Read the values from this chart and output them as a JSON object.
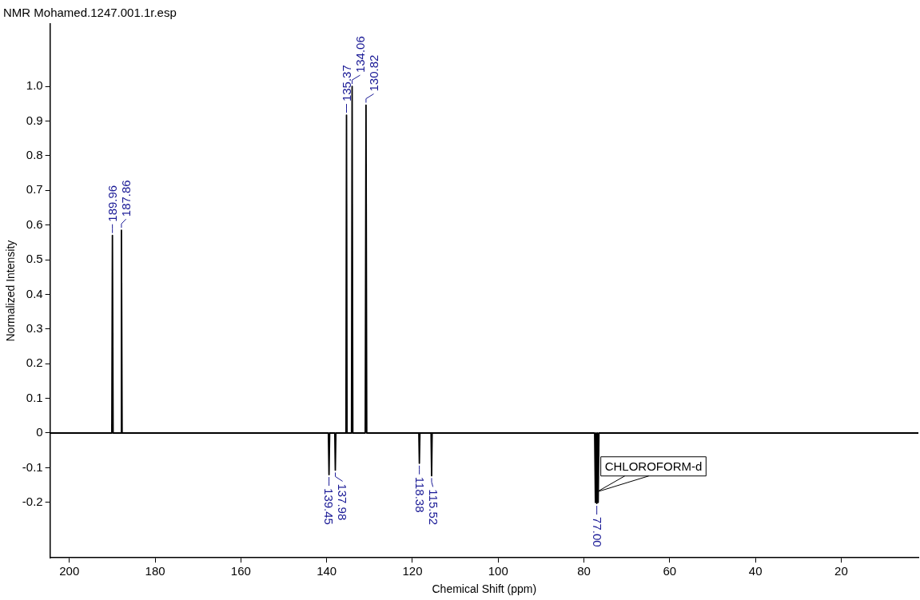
{
  "chart_data": {
    "type": "line",
    "title": "NMR Mohamed.1247.001.1r.esp",
    "xlabel": "Chemical Shift (ppm)",
    "ylabel": "Normalized Intensity",
    "xlim": [
      204.5,
      2
    ],
    "xticks": [
      200,
      180,
      160,
      140,
      120,
      100,
      80,
      60,
      40,
      20
    ],
    "ylim": [
      -0.36,
      1.18
    ],
    "yticks": [
      {
        "value": 1.0,
        "label": "1.0"
      },
      0.9,
      0.8,
      0.7,
      0.6,
      0.5,
      0.4,
      0.3,
      0.2,
      0.1,
      0,
      -0.1,
      -0.2
    ],
    "grid": false,
    "legend": false,
    "marker": "none",
    "line_style": "solid",
    "series": [
      {
        "color": "#000000",
        "x": [
          204.5,
          190.1,
          189.96,
          189.8,
          188.0,
          187.86,
          187.7,
          139.6,
          139.45,
          139.3,
          138.1,
          137.98,
          137.85,
          135.5,
          135.37,
          135.25,
          134.2,
          134.06,
          133.9,
          131.0,
          130.82,
          130.65,
          118.5,
          118.38,
          118.25,
          115.65,
          115.52,
          115.4,
          77.5,
          77.32,
          77.16,
          77.0,
          76.84,
          76.68,
          76.5,
          2
        ],
        "values": [
          0,
          0,
          0.57,
          0,
          0,
          0.585,
          0,
          0,
          -0.12,
          0,
          0,
          -0.107,
          0,
          0,
          0.917,
          0,
          0,
          1.0,
          0,
          0,
          0.946,
          0,
          0,
          -0.087,
          0,
          0,
          -0.123,
          0,
          0,
          -0.2,
          0,
          -0.203,
          0,
          -0.2,
          0,
          0
        ]
      }
    ],
    "annotations": [
      {
        "text": "189.96",
        "x": 189.96,
        "y": 0.57
      },
      {
        "text": "187.86",
        "x": 187.86,
        "y": 0.585
      },
      {
        "text": "135.37",
        "x": 135.37,
        "y": 0.917
      },
      {
        "text": "134.06",
        "x": 134.06,
        "y": 1.0
      },
      {
        "text": "130.82",
        "x": 130.82,
        "y": 0.946
      },
      {
        "text": "139.45",
        "x": 139.45,
        "y": -0.12
      },
      {
        "text": "137.98",
        "x": 137.98,
        "y": -0.107
      },
      {
        "text": "118.38",
        "x": 118.38,
        "y": -0.087
      },
      {
        "text": "115.52",
        "x": 115.52,
        "y": -0.123
      },
      {
        "text": "77.00",
        "x": 77.0,
        "y": -0.203
      },
      {
        "text": "CHLOROFORM-d",
        "x": 77.0,
        "y": -0.17
      }
    ]
  }
}
